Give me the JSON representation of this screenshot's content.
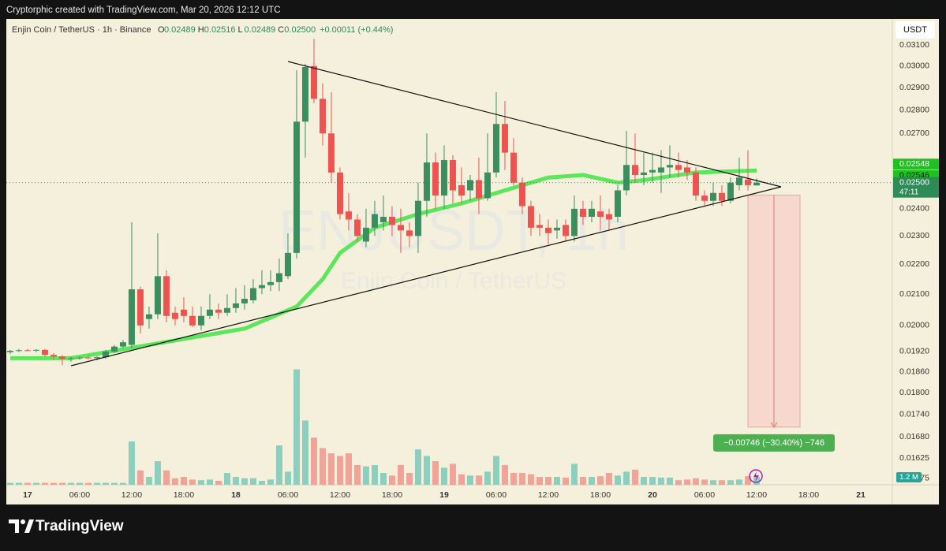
{
  "header": "Cryptorphic created with TradingView.com, Mar 20, 2026 12:12 UTC",
  "legend": {
    "symbol": "Enjin Coin / TetherUS · 1h · Binance",
    "o_label": "O",
    "o": "0.02489",
    "h_label": "H",
    "h": "0.02516",
    "l_label": "L",
    "l": "0.02489",
    "c_label": "C",
    "c": "0.02500",
    "change": "+0.00011 (+0.44%)"
  },
  "watermark": {
    "ticker": "ENJUSDT, 1h",
    "name": "Enjin Coin / TetherUS"
  },
  "currency": "USDT",
  "countdown": "47:11",
  "brand": "TradingView",
  "chart_data": {
    "type": "candlestick",
    "log_scale": true,
    "grid": false,
    "xlim": [
      -2.45,
      99.64
    ],
    "ylim": [
      0.01559,
      0.03229
    ],
    "y2lim": [
      0,
      71
    ],
    "xticks": [
      {
        "value": 0,
        "label": "17"
      },
      {
        "value": 6,
        "label": "06:00"
      },
      {
        "value": 12,
        "label": "12:00"
      },
      {
        "value": 18,
        "label": "18:00"
      },
      {
        "value": 24,
        "label": "18"
      },
      {
        "value": 30,
        "label": "06:00"
      },
      {
        "value": 36,
        "label": "12:00"
      },
      {
        "value": 42,
        "label": "18:00"
      },
      {
        "value": 48,
        "label": "19"
      },
      {
        "value": 54,
        "label": "06:00"
      },
      {
        "value": 60,
        "label": "12:00"
      },
      {
        "value": 66,
        "label": "18:00"
      },
      {
        "value": 72,
        "label": "20"
      },
      {
        "value": 78,
        "label": "06:00"
      },
      {
        "value": 84,
        "label": "12:00"
      },
      {
        "value": 90,
        "label": "18:00"
      },
      {
        "value": 96,
        "label": "21"
      }
    ],
    "yticks": [
      {
        "value": 0.031,
        "label": "0.03100"
      },
      {
        "value": 0.03,
        "label": "0.03000"
      },
      {
        "value": 0.029,
        "label": "0.02900"
      },
      {
        "value": 0.028,
        "label": "0.02800"
      },
      {
        "value": 0.027,
        "label": "0.02700"
      },
      {
        "value": 0.024,
        "label": "0.02400"
      },
      {
        "value": 0.023,
        "label": "0.02300"
      },
      {
        "value": 0.022,
        "label": "0.02200"
      },
      {
        "value": 0.021,
        "label": "0.02100"
      },
      {
        "value": 0.02,
        "label": "0.02000"
      },
      {
        "value": 0.0192,
        "label": "0.01920"
      },
      {
        "value": 0.0186,
        "label": "0.01860"
      },
      {
        "value": 0.018,
        "label": "0.01800"
      },
      {
        "value": 0.0174,
        "label": "0.01740"
      },
      {
        "value": 0.0168,
        "label": "0.01680"
      },
      {
        "value": 0.01625,
        "label": "0.01625"
      },
      {
        "value": 0.01575,
        "label": "0.01575"
      }
    ],
    "up_color": "#3b8f5e",
    "down_color": "#ef5350",
    "volume_up_color": "#8ccfbf",
    "volume_down_color": "#f2a397",
    "x": [
      -2,
      -1,
      0,
      1,
      2,
      3,
      4,
      5,
      6,
      7,
      8,
      9,
      10,
      11,
      12,
      13,
      14,
      15,
      16,
      17,
      18,
      19,
      20,
      21,
      22,
      23,
      24,
      25,
      26,
      27,
      28,
      29,
      30,
      31,
      32,
      33,
      34,
      35,
      36,
      37,
      38,
      39,
      40,
      41,
      42,
      43,
      44,
      45,
      46,
      47,
      48,
      49,
      50,
      51,
      52,
      53,
      54,
      55,
      56,
      57,
      58,
      59,
      60,
      61,
      62,
      63,
      64,
      65,
      66,
      67,
      68,
      69,
      70,
      71,
      72,
      73,
      74,
      75,
      76,
      77,
      78,
      79,
      80,
      81,
      82,
      83,
      84
    ],
    "open": [
      0.01918,
      0.01922,
      0.01924,
      0.01923,
      0.01925,
      0.0191,
      0.01905,
      0.01898,
      0.019,
      0.01902,
      0.019,
      0.01903,
      0.0192,
      0.01935,
      0.0194,
      0.02116,
      0.0202,
      0.02035,
      0.0216,
      0.0204,
      0.0205,
      0.0203,
      0.02,
      0.0203,
      0.0205,
      0.0204,
      0.02055,
      0.0207,
      0.0208,
      0.0212,
      0.0213,
      0.0214,
      0.0216,
      0.0224,
      0.0275,
      0.03,
      0.0285,
      0.027,
      0.0254,
      0.0239,
      0.0236,
      0.0228,
      0.0233,
      0.0235,
      0.0237,
      0.0234,
      0.0232,
      0.023,
      0.0243,
      0.0258,
      0.0245,
      0.0259,
      0.0249,
      0.0247,
      0.0251,
      0.0244,
      0.0254,
      0.0274,
      0.0262,
      0.025,
      0.0241,
      0.0234,
      0.0233,
      0.0232,
      0.0234,
      0.023,
      0.024,
      0.0237,
      0.0239,
      0.0238,
      0.0237,
      0.0247,
      0.0257,
      0.0253,
      0.0254,
      0.0254,
      0.0256,
      0.0257,
      0.0256,
      0.0254,
      0.0245,
      0.0243,
      0.0246,
      0.0243,
      0.0249,
      0.02512,
      0.02489
    ],
    "high": [
      0.01925,
      0.01928,
      0.01928,
      0.01927,
      0.01928,
      0.01915,
      0.0191,
      0.01905,
      0.01905,
      0.01908,
      0.01906,
      0.01925,
      0.0194,
      0.01955,
      0.0235,
      0.02125,
      0.0206,
      0.0231,
      0.0218,
      0.0206,
      0.0209,
      0.0206,
      0.0206,
      0.021,
      0.0207,
      0.021,
      0.0212,
      0.0213,
      0.0215,
      0.0218,
      0.0218,
      0.0222,
      0.0231,
      0.0298,
      0.0301,
      0.0313,
      0.0292,
      0.0288,
      0.0256,
      0.0246,
      0.0238,
      0.024,
      0.0243,
      0.0245,
      0.0241,
      0.024,
      0.0235,
      0.025,
      0.027,
      0.0262,
      0.0265,
      0.0261,
      0.0256,
      0.0253,
      0.026,
      0.027,
      0.0288,
      0.0284,
      0.0268,
      0.0252,
      0.0243,
      0.0238,
      0.0236,
      0.0236,
      0.0236,
      0.0245,
      0.0243,
      0.0243,
      0.0245,
      0.024,
      0.0249,
      0.0271,
      0.027,
      0.0262,
      0.0262,
      0.0263,
      0.0265,
      0.0262,
      0.0259,
      0.0256,
      0.0247,
      0.025,
      0.0249,
      0.0252,
      0.026,
      0.0263,
      0.02516
    ],
    "low": [
      0.01912,
      0.01918,
      0.0192,
      0.01918,
      0.01905,
      0.01895,
      0.0188,
      0.0189,
      0.01895,
      0.01897,
      0.01894,
      0.01898,
      0.01915,
      0.0193,
      0.0193,
      0.01975,
      0.0199,
      0.0202,
      0.0201,
      0.02,
      0.0201,
      0.01995,
      0.01985,
      0.0202,
      0.0202,
      0.0203,
      0.0204,
      0.0205,
      0.0207,
      0.021,
      0.0211,
      0.0211,
      0.0215,
      0.0222,
      0.026,
      0.0283,
      0.0265,
      0.025,
      0.0236,
      0.0232,
      0.0228,
      0.0226,
      0.023,
      0.0232,
      0.023,
      0.0224,
      0.0226,
      0.0224,
      0.0237,
      0.024,
      0.024,
      0.0242,
      0.0242,
      0.0243,
      0.0238,
      0.0243,
      0.0252,
      0.0255,
      0.0249,
      0.0238,
      0.023,
      0.023,
      0.0227,
      0.0229,
      0.0228,
      0.0228,
      0.0234,
      0.0235,
      0.0232,
      0.0232,
      0.0235,
      0.0245,
      0.025,
      0.0249,
      0.025,
      0.0246,
      0.0252,
      0.0252,
      0.0251,
      0.0243,
      0.0241,
      0.0241,
      0.0241,
      0.0242,
      0.0247,
      0.0247,
      0.02489
    ],
    "close": [
      0.01922,
      0.01924,
      0.01923,
      0.01925,
      0.0191,
      0.01905,
      0.01898,
      0.019,
      0.01902,
      0.019,
      0.01903,
      0.0192,
      0.01935,
      0.01948,
      0.02116,
      0.02,
      0.02035,
      0.0216,
      0.0203,
      0.0202,
      0.0203,
      0.02,
      0.0203,
      0.0205,
      0.0204,
      0.02055,
      0.0207,
      0.02085,
      0.0212,
      0.0213,
      0.0214,
      0.0217,
      0.0224,
      0.0275,
      0.02995,
      0.0285,
      0.027,
      0.0254,
      0.0238,
      0.0236,
      0.023,
      0.0233,
      0.0238,
      0.0237,
      0.0234,
      0.0232,
      0.023,
      0.0243,
      0.0258,
      0.0245,
      0.0259,
      0.0247,
      0.0245,
      0.0251,
      0.0244,
      0.0254,
      0.0274,
      0.0262,
      0.025,
      0.0241,
      0.0233,
      0.0233,
      0.0231,
      0.0233,
      0.023,
      0.024,
      0.0237,
      0.024,
      0.0237,
      0.0236,
      0.0247,
      0.0257,
      0.0253,
      0.0254,
      0.0255,
      0.0256,
      0.0257,
      0.0255,
      0.0254,
      0.0245,
      0.0243,
      0.0246,
      0.0243,
      0.025,
      0.0252,
      0.0249,
      0.025
    ],
    "volume": [
      0.3,
      0.3,
      0.3,
      0.3,
      0.3,
      0.3,
      0.3,
      0.3,
      0.3,
      0.3,
      0.3,
      0.3,
      0.3,
      0.3,
      6.6,
      2.2,
      1.2,
      3.6,
      2.2,
      1.0,
      1.2,
      0.8,
      0.7,
      0.8,
      0.6,
      1.8,
      1.2,
      1.0,
      1.0,
      0.6,
      0.8,
      6.0,
      2.0,
      17.6,
      9.8,
      7.2,
      5.6,
      4.8,
      4.4,
      4.8,
      3.0,
      2.8,
      3.0,
      1.8,
      1.4,
      3.0,
      1.8,
      5.4,
      4.4,
      3.6,
      2.6,
      3.2,
      1.6,
      1.4,
      1.4,
      2.0,
      4.4,
      3.0,
      1.8,
      1.8,
      1.6,
      1.2,
      1.2,
      1.2,
      1.1,
      3.2,
      1.2,
      1.2,
      1.3,
      1.8,
      1.4,
      2.0,
      2.3,
      1.2,
      1.2,
      1.1,
      1.1,
      0.7,
      0.8,
      1.0,
      0.8,
      0.7,
      0.7,
      0.7,
      0.8,
      1.3,
      1.2
    ],
    "last_volume": {
      "value": 1.2,
      "label": "1.2 M"
    },
    "moving_average": {
      "color": "#5ce65c",
      "x": [
        -2,
        5,
        14,
        25,
        31,
        34,
        36,
        40,
        45,
        50,
        56,
        60,
        64,
        68,
        71,
        77,
        84
      ],
      "values": [
        0.019,
        0.019,
        0.0194,
        0.0199,
        0.0206,
        0.0215,
        0.0224,
        0.0233,
        0.0238,
        0.0242,
        0.0248,
        0.0252,
        0.0253,
        0.025,
        0.0251,
        0.0254,
        0.02548
      ]
    },
    "price_labels": [
      {
        "value": 0.02548,
        "label": "0.02548",
        "color": "#1fc01f"
      },
      {
        "value": 0.02546,
        "label": "0.02546",
        "color": "#1fc01f"
      },
      {
        "value": 0.025,
        "label": "0.02500",
        "color": "#2e8b57"
      }
    ],
    "measure": {
      "start_x": 83,
      "end_x": 89,
      "from": 0.02452,
      "to": 0.01706,
      "label": "−0.00746 (−30.40%) −746"
    }
  }
}
